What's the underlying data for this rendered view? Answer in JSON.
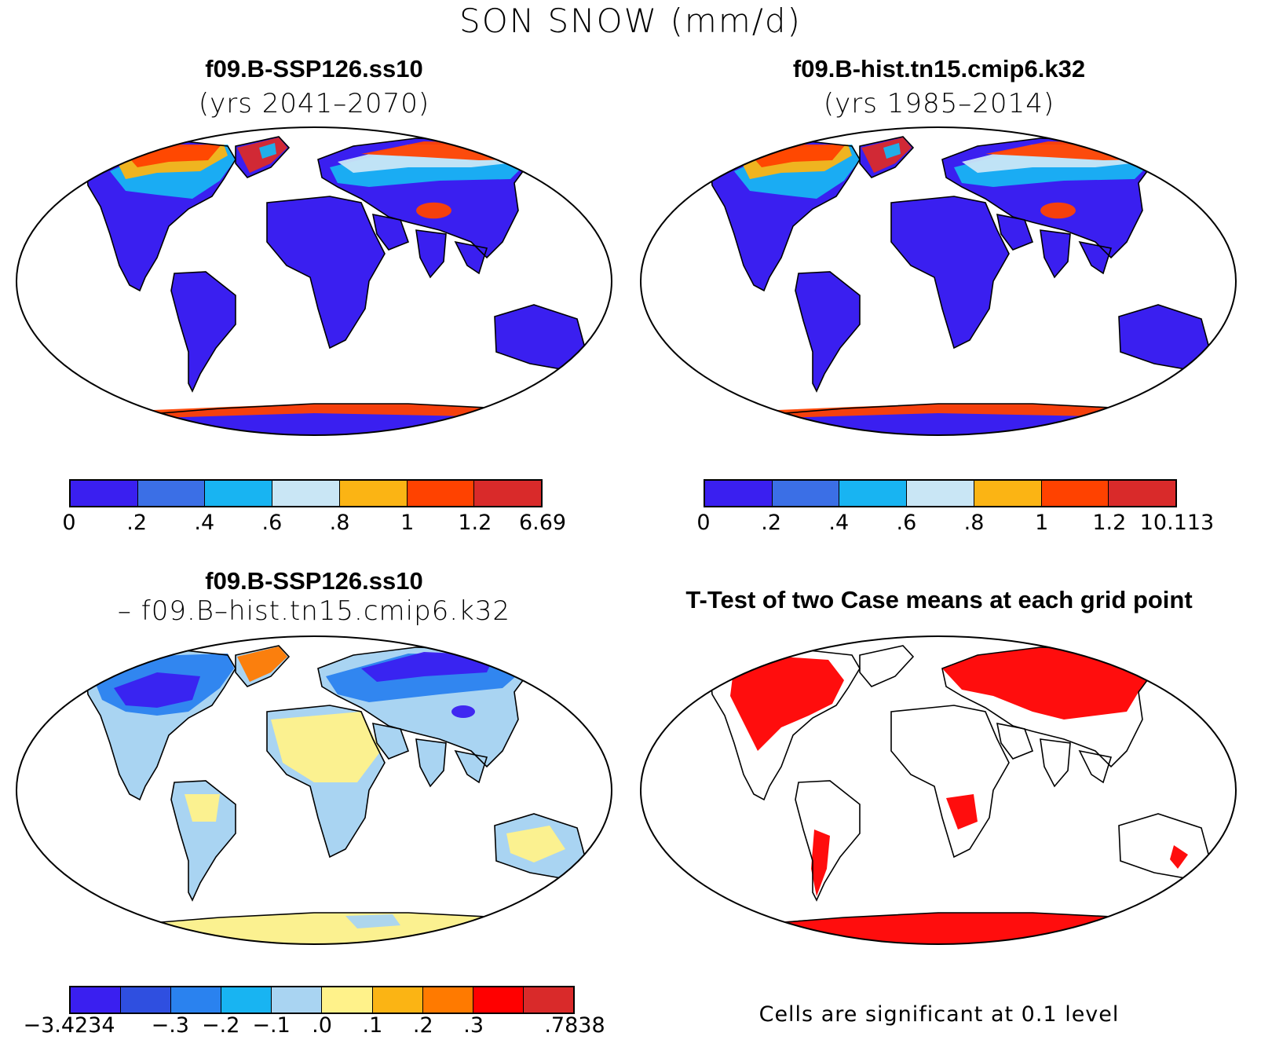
{
  "title": "SON SNOW (mm/d)",
  "panels": {
    "top_left": {
      "title": "f09.B-SSP126.ss10",
      "subtitle": "(yrs 2041–2070)",
      "colorbar": {
        "colors": [
          "#3a1ff0",
          "#3b6fe6",
          "#18b4f2",
          "#c9e6f5",
          "#fbb414",
          "#ff4200",
          "#d92a2a"
        ],
        "labels": [
          "0",
          ".2",
          ".4",
          ".6",
          ".8",
          "1",
          "1.2",
          "6.69"
        ]
      }
    },
    "top_right": {
      "title": "f09.B-hist.tn15.cmip6.k32",
      "subtitle": "(yrs 1985–2014)",
      "colorbar": {
        "colors": [
          "#3a1ff0",
          "#3b6fe6",
          "#18b4f2",
          "#c9e6f5",
          "#fbb414",
          "#ff4200",
          "#d92a2a"
        ],
        "labels": [
          "0",
          ".2",
          ".4",
          ".6",
          ".8",
          "1",
          "1.2",
          "10.113"
        ]
      }
    },
    "bottom_left": {
      "title": "f09.B-SSP126.ss10",
      "subtitle": "– f09.B–hist.tn15.cmip6.k32",
      "colorbar": {
        "colors": [
          "#3a1ff0",
          "#2f4fe0",
          "#2a82ef",
          "#18b4f2",
          "#a9d4f2",
          "#fff28a",
          "#fbb414",
          "#ff7a00",
          "#ff0000",
          "#d92a2a"
        ],
        "labels": [
          "−3.4234",
          "",
          "−.3",
          "−.2",
          "−.1",
          ".0",
          ".1",
          ".2",
          ".3",
          "",
          ".7838"
        ]
      }
    },
    "bottom_right": {
      "title": "T-Test of two Case means at each grid point",
      "note": "Cells are significant at 0.1 level",
      "significant_color": "#ff0000"
    }
  }
}
